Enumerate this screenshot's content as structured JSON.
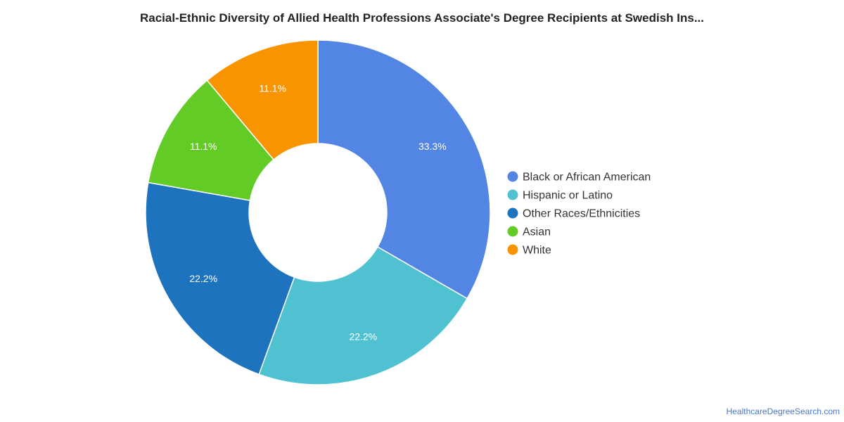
{
  "chart_data": {
    "type": "pie",
    "variant": "donut",
    "title": "Racial-Ethnic Diversity of Allied Health Professions Associate's Degree Recipients at Swedish Ins...",
    "legend_position": "right",
    "slices": [
      {
        "name": "Black or African American",
        "value": 33.3,
        "label": "33.3%",
        "color": "#5386e4"
      },
      {
        "name": "Hispanic or Latino",
        "value": 22.2,
        "label": "22.2%",
        "color": "#4fc1d0"
      },
      {
        "name": "Other Races/Ethnicities",
        "value": 22.2,
        "label": "22.2%",
        "color": "#1e73be"
      },
      {
        "name": "Asian",
        "value": 11.1,
        "label": "11.1%",
        "color": "#62cb25"
      },
      {
        "name": "White",
        "value": 11.1,
        "label": "11.1%",
        "color": "#f79400"
      }
    ]
  },
  "source": "HealthcareDegreeSearch.com"
}
